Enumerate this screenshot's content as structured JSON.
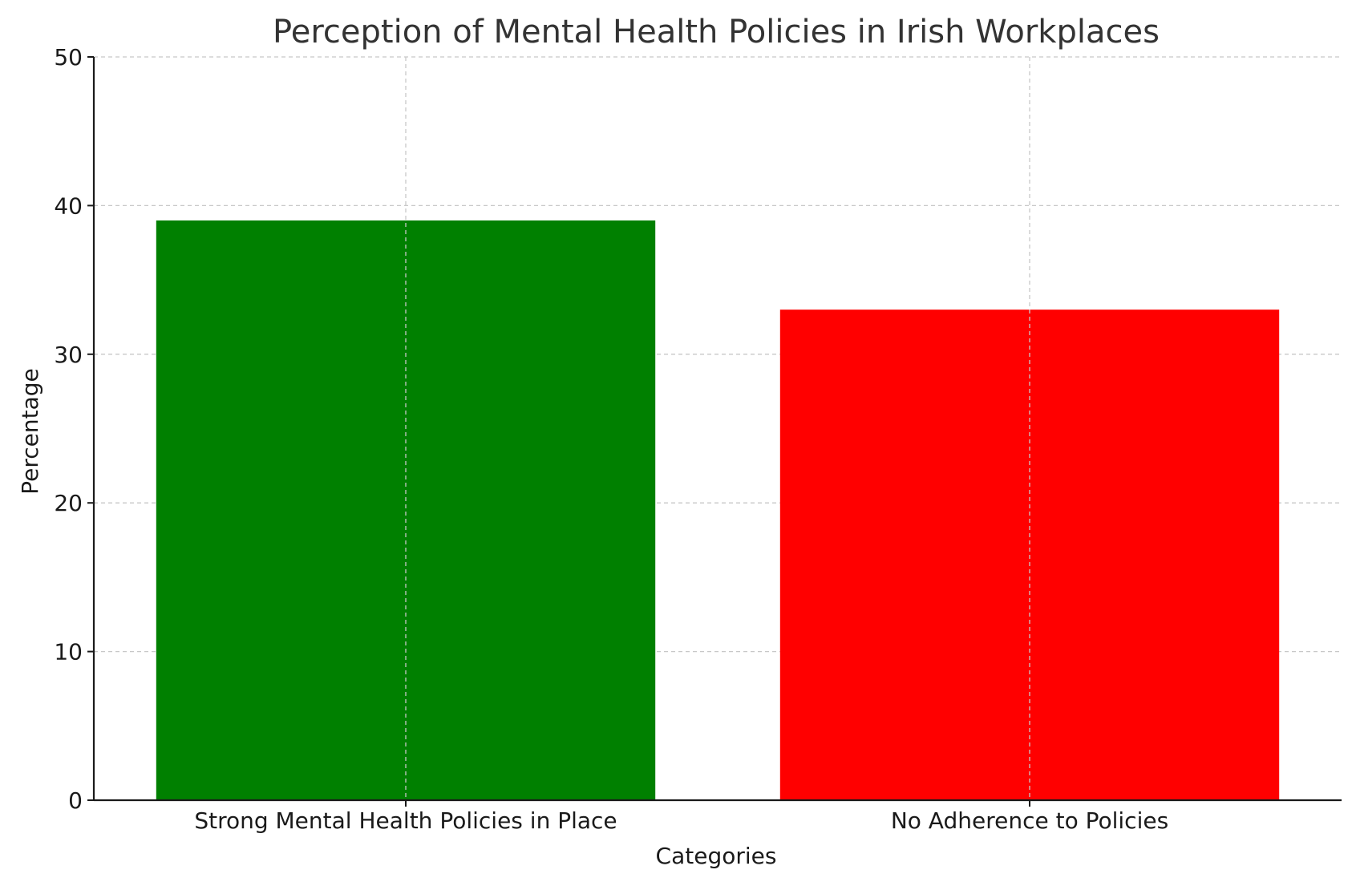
{
  "chart_data": {
    "type": "bar",
    "title": "Perception of Mental Health Policies in Irish Workplaces",
    "xlabel": "Categories",
    "ylabel": "Percentage",
    "categories": [
      "Strong Mental Health Policies in Place",
      "No Adherence to Policies"
    ],
    "values": [
      39,
      33
    ],
    "colors": [
      "#008000",
      "#ff0000"
    ],
    "ylim": [
      0,
      50
    ],
    "yticks": [
      0,
      10,
      20,
      30,
      40,
      50
    ],
    "grid": true,
    "legend": "none"
  }
}
